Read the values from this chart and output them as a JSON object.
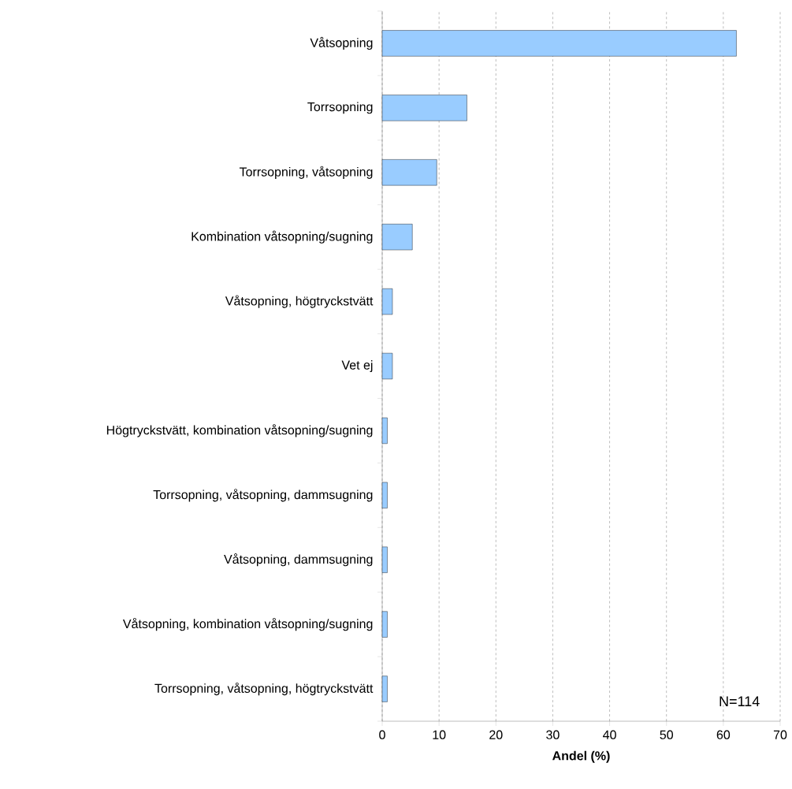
{
  "chart_data": {
    "type": "bar",
    "orientation": "horizontal",
    "xlabel": "Andel (%)",
    "categories": [
      "Våtsopning",
      "Torrsopning",
      "Torrsopning, våtsopning",
      "Kombination våtsopning/sugning",
      "Våtsopning, högtryckstvätt",
      "Vet ej",
      "Högtryckstvätt, kombination våtsopning/sugning",
      "Torrsopning, våtsopning, dammsugning",
      "Våtsopning, dammsugning",
      "Våtsopning, kombination våtsopning/sugning",
      "Torrsopning, våtsopning, högtryckstvätt"
    ],
    "values": [
      62.3,
      14.9,
      9.6,
      5.3,
      1.8,
      1.8,
      0.9,
      0.9,
      0.9,
      0.9,
      0.9
    ],
    "color": "#99ccff",
    "xlim": [
      0,
      70
    ],
    "xticks": [
      0,
      10,
      20,
      30,
      40,
      50,
      60,
      70
    ],
    "grid": "x",
    "annotations": [
      "N=114"
    ]
  }
}
